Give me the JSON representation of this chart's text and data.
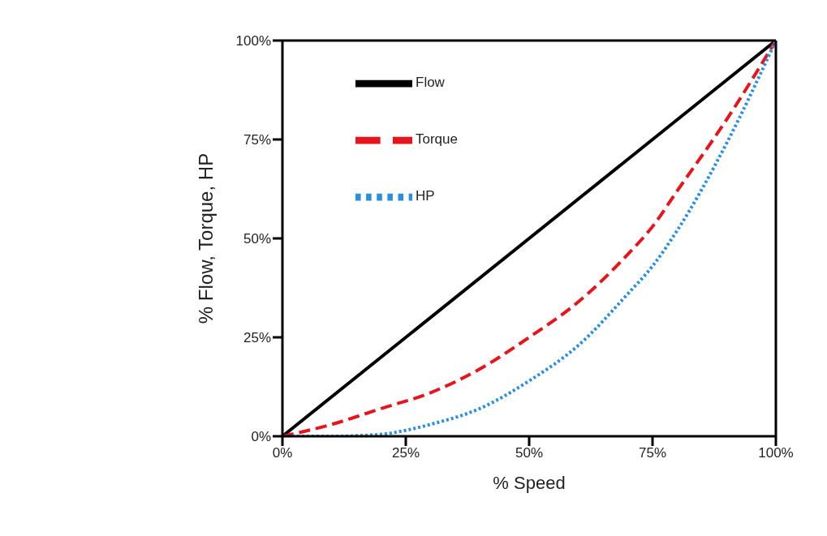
{
  "chart_data": {
    "type": "line",
    "xlabel": "% Speed",
    "ylabel": "% Flow, Torque, HP",
    "xlim": [
      0,
      100
    ],
    "ylim": [
      0,
      100
    ],
    "xticks": [
      {
        "value": 0,
        "label": "0%"
      },
      {
        "value": 25,
        "label": "25%"
      },
      {
        "value": 50,
        "label": "50%"
      },
      {
        "value": 75,
        "label": "75%"
      },
      {
        "value": 100,
        "label": "100%"
      }
    ],
    "yticks": [
      {
        "value": 0,
        "label": "0%"
      },
      {
        "value": 25,
        "label": "25%"
      },
      {
        "value": 50,
        "label": "50%"
      },
      {
        "value": 75,
        "label": "75%"
      },
      {
        "value": 100,
        "label": "100%"
      }
    ],
    "legend": "top left",
    "series": [
      {
        "name": "Flow",
        "color": "#000000",
        "line_style": "solid",
        "x": [
          0,
          100
        ],
        "values": [
          0,
          100
        ]
      },
      {
        "name": "Torque",
        "color": "#e8141c",
        "line_style": "dashed",
        "x": [
          0,
          10,
          20,
          30,
          40,
          50,
          60,
          70,
          75,
          80,
          90,
          100
        ],
        "values": [
          0,
          3,
          7,
          11,
          17,
          25,
          34,
          46,
          53,
          62,
          80,
          100
        ]
      },
      {
        "name": "HP",
        "color": "#2a8fe0",
        "line_style": "dotted",
        "x": [
          0,
          10,
          20,
          25,
          30,
          40,
          50,
          60,
          70,
          75,
          80,
          90,
          100
        ],
        "values": [
          0,
          0,
          0.5,
          1.5,
          3,
          7,
          14,
          23,
          36,
          43,
          52,
          74,
          100
        ]
      }
    ]
  }
}
